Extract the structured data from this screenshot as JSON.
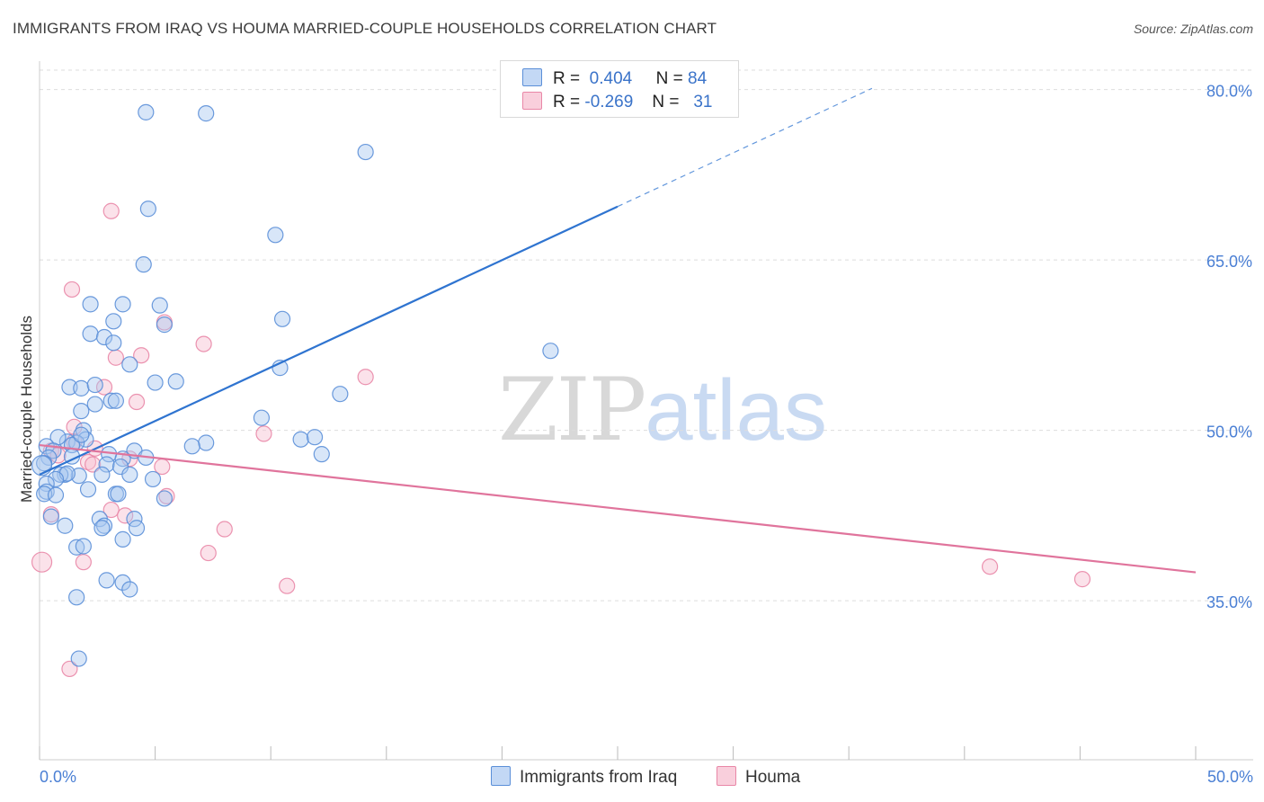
{
  "title": "IMMIGRANTS FROM IRAQ VS HOUMA MARRIED-COUPLE HOUSEHOLDS CORRELATION CHART",
  "source": "Source: ZipAtlas.com",
  "watermark": {
    "zip": "ZIP",
    "atlas": "atlas"
  },
  "colors": {
    "iraq_fill": "#a9c8f0",
    "iraq_stroke": "#5b8fd8",
    "iraq_line": "#2f74d0",
    "houma_fill": "#f7bfd0",
    "houma_stroke": "#e987a7",
    "houma_line": "#e0749c",
    "grid": "#dddddd",
    "tick_text": "#4a7fd4"
  },
  "legend": {
    "iraq": {
      "r_label": "R =",
      "r_value": "0.404",
      "n_label": "N =",
      "n_value": "84"
    },
    "houma": {
      "r_label": "R =",
      "r_value": "-0.269",
      "n_label": "N =",
      "n_value": "31"
    }
  },
  "bottom_legend": {
    "iraq": "Immigrants from Iraq",
    "houma": "Houma"
  },
  "chart_data": {
    "type": "scatter",
    "title": "IMMIGRANTS FROM IRAQ VS HOUMA MARRIED-COUPLE HOUSEHOLDS CORRELATION CHART",
    "xlabel": "",
    "ylabel": "Married-couple Households",
    "xlim": [
      0,
      50
    ],
    "ylim": [
      21,
      82.5
    ],
    "x_tick_labels": [
      "0.0%",
      "50.0%"
    ],
    "y_ticks": [
      35,
      50,
      65,
      80
    ],
    "y_tick_labels": [
      "35.0%",
      "50.0%",
      "65.0%",
      "80.0%"
    ],
    "grid": true,
    "series": [
      {
        "name": "Immigrants from Iraq",
        "trend": {
          "x": [
            0,
            25
          ],
          "y": [
            46.1,
            69.7
          ],
          "dashed_to": [
            36,
            80.1
          ]
        },
        "points": [
          [
            4.6,
            78.0
          ],
          [
            7.2,
            77.9
          ],
          [
            14.1,
            74.5
          ],
          [
            4.7,
            69.5
          ],
          [
            10.2,
            67.2
          ],
          [
            4.5,
            64.6
          ],
          [
            2.2,
            61.1
          ],
          [
            3.6,
            61.1
          ],
          [
            5.2,
            61.0
          ],
          [
            10.5,
            59.8
          ],
          [
            3.2,
            59.6
          ],
          [
            5.4,
            59.3
          ],
          [
            2.2,
            58.5
          ],
          [
            2.8,
            58.2
          ],
          [
            3.2,
            57.7
          ],
          [
            22.1,
            57.0
          ],
          [
            3.9,
            55.8
          ],
          [
            10.4,
            55.5
          ],
          [
            5.0,
            54.2
          ],
          [
            5.9,
            54.3
          ],
          [
            1.3,
            53.8
          ],
          [
            1.8,
            53.7
          ],
          [
            2.4,
            54.0
          ],
          [
            13.0,
            53.2
          ],
          [
            2.4,
            52.3
          ],
          [
            3.1,
            52.6
          ],
          [
            3.3,
            52.6
          ],
          [
            1.8,
            51.7
          ],
          [
            9.6,
            51.1
          ],
          [
            1.9,
            50.0
          ],
          [
            2.0,
            49.2
          ],
          [
            1.2,
            49.0
          ],
          [
            1.6,
            48.9
          ],
          [
            1.4,
            48.7
          ],
          [
            0.8,
            49.4
          ],
          [
            0.3,
            48.6
          ],
          [
            1.8,
            49.6
          ],
          [
            11.3,
            49.2
          ],
          [
            11.9,
            49.4
          ],
          [
            7.2,
            48.9
          ],
          [
            6.6,
            48.6
          ],
          [
            4.1,
            48.2
          ],
          [
            0.6,
            48.2
          ],
          [
            0.4,
            47.6
          ],
          [
            1.4,
            47.7
          ],
          [
            4.6,
            47.6
          ],
          [
            3.0,
            47.9
          ],
          [
            3.6,
            47.5
          ],
          [
            12.2,
            47.9
          ],
          [
            0.2,
            47.1
          ],
          [
            2.9,
            47.0
          ],
          [
            3.5,
            46.8
          ],
          [
            3.9,
            46.1
          ],
          [
            1.7,
            46.0
          ],
          [
            1.1,
            46.1
          ],
          [
            0.9,
            46.1
          ],
          [
            1.2,
            46.2
          ],
          [
            0.7,
            45.7
          ],
          [
            4.9,
            45.7
          ],
          [
            0.3,
            45.3
          ],
          [
            2.7,
            46.1
          ],
          [
            2.1,
            44.8
          ],
          [
            0.3,
            44.6
          ],
          [
            0.2,
            44.4
          ],
          [
            0.7,
            44.3
          ],
          [
            3.3,
            44.4
          ],
          [
            3.4,
            44.4
          ],
          [
            5.4,
            44.0
          ],
          [
            0.5,
            42.4
          ],
          [
            2.6,
            42.2
          ],
          [
            4.1,
            42.2
          ],
          [
            2.8,
            41.6
          ],
          [
            2.7,
            41.4
          ],
          [
            4.2,
            41.4
          ],
          [
            1.1,
            41.6
          ],
          [
            3.6,
            40.4
          ],
          [
            1.6,
            39.7
          ],
          [
            1.9,
            39.8
          ],
          [
            2.9,
            36.8
          ],
          [
            3.6,
            36.6
          ],
          [
            3.9,
            36.0
          ],
          [
            1.6,
            35.3
          ],
          [
            1.7,
            29.9
          ],
          [
            0.1,
            46.9
          ]
        ]
      },
      {
        "name": "Houma",
        "trend": {
          "x": [
            0,
            50
          ],
          "y": [
            48.7,
            37.5
          ]
        },
        "points": [
          [
            3.1,
            69.3
          ],
          [
            1.4,
            62.4
          ],
          [
            5.4,
            59.5
          ],
          [
            7.1,
            57.6
          ],
          [
            4.4,
            56.6
          ],
          [
            3.3,
            56.4
          ],
          [
            14.1,
            54.7
          ],
          [
            2.8,
            53.8
          ],
          [
            4.2,
            52.5
          ],
          [
            9.7,
            49.7
          ],
          [
            1.5,
            50.3
          ],
          [
            0.5,
            48.2
          ],
          [
            0.8,
            47.8
          ],
          [
            1.5,
            49.0
          ],
          [
            2.1,
            47.2
          ],
          [
            3.9,
            47.5
          ],
          [
            5.3,
            46.8
          ],
          [
            2.3,
            47.0
          ],
          [
            5.5,
            44.2
          ],
          [
            3.1,
            43.0
          ],
          [
            3.7,
            42.5
          ],
          [
            0.5,
            42.6
          ],
          [
            8.0,
            41.3
          ],
          [
            7.3,
            39.2
          ],
          [
            1.9,
            38.4
          ],
          [
            0.1,
            38.4
          ],
          [
            10.7,
            36.3
          ],
          [
            41.1,
            38.0
          ],
          [
            45.1,
            36.9
          ],
          [
            1.3,
            29.0
          ],
          [
            2.4,
            48.4
          ]
        ]
      }
    ]
  }
}
